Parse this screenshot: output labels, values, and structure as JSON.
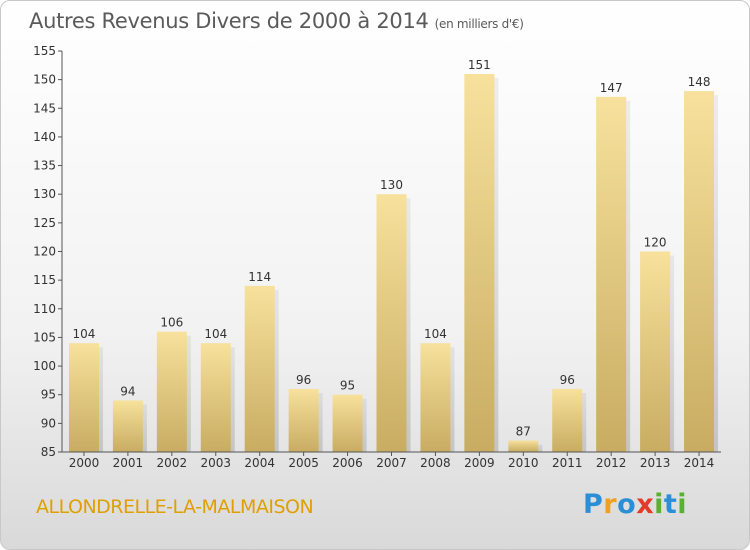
{
  "title": "Autres Revenus Divers de 2000 à 2014",
  "subtitle": "(en milliers d'€)",
  "town": "ALLONDRELLE-LA-MALMAISON",
  "logo": {
    "letters": [
      "P",
      "r",
      "o",
      "x",
      "i",
      "t",
      "i"
    ],
    "colors": [
      "#2a8fd6",
      "#f0a020",
      "#2a8fd6",
      "#e23b2a",
      "#5ab030",
      "#2a8fd6",
      "#5ab030"
    ]
  },
  "colors": {
    "bar_light": "#f7e19c",
    "bar_dark": "#c8ac62",
    "axis": "#555555"
  },
  "chart_data": {
    "type": "bar",
    "title": "Autres Revenus Divers de 2000 à 2014",
    "subtitle": "(en milliers d'€)",
    "xlabel": "",
    "ylabel": "",
    "categories": [
      "2000",
      "2001",
      "2002",
      "2003",
      "2004",
      "2005",
      "2006",
      "2007",
      "2008",
      "2009",
      "2010",
      "2011",
      "2012",
      "2013",
      "2014"
    ],
    "values": [
      104,
      94,
      106,
      104,
      114,
      96,
      95,
      130,
      104,
      151,
      87,
      96,
      147,
      120,
      148
    ],
    "ylim": [
      85,
      155
    ],
    "yticks": [
      85,
      90,
      95,
      100,
      105,
      110,
      115,
      120,
      125,
      130,
      135,
      140,
      145,
      150,
      155
    ],
    "grid": false,
    "legend": "none"
  }
}
